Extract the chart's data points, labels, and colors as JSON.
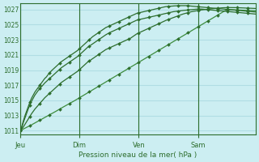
{
  "bg_color": "#cceef2",
  "grid_color": "#b0dde4",
  "line_color_dark": "#2d6e2d",
  "line_color_light": "#3d8c3d",
  "xlabel": "Pression niveau de la mer( hPa )",
  "ylim": [
    1010.5,
    1027.8
  ],
  "yticks": [
    1011,
    1013,
    1015,
    1017,
    1019,
    1021,
    1023,
    1025,
    1027
  ],
  "xtick_labels": [
    "Jeu",
    "Dim",
    "Ven",
    "Sam"
  ],
  "xtick_positions": [
    0,
    36,
    72,
    108
  ],
  "total_points": 144,
  "line_fast1": [
    1011.0,
    1011.5,
    1012.3,
    1013.0,
    1013.6,
    1014.2,
    1014.8,
    1015.3,
    1015.7,
    1016.1,
    1016.4,
    1016.7,
    1017.0,
    1017.3,
    1017.6,
    1017.9,
    1018.1,
    1018.4,
    1018.6,
    1018.9,
    1019.1,
    1019.3,
    1019.5,
    1019.7,
    1019.9,
    1020.1,
    1020.25,
    1020.4,
    1020.55,
    1020.7,
    1020.85,
    1021.0,
    1021.15,
    1021.3,
    1021.45,
    1021.6,
    1021.8,
    1022.0,
    1022.2,
    1022.4,
    1022.6,
    1022.8,
    1023.0,
    1023.2,
    1023.4,
    1023.55,
    1023.7,
    1023.85,
    1024.0,
    1024.15,
    1024.3,
    1024.45,
    1024.6,
    1024.7,
    1024.8,
    1024.9,
    1025.0,
    1025.1,
    1025.2,
    1025.3,
    1025.4,
    1025.5,
    1025.6,
    1025.7,
    1025.8,
    1025.9,
    1026.0,
    1026.1,
    1026.2,
    1026.3,
    1026.4,
    1026.5,
    1026.55,
    1026.6,
    1026.65,
    1026.7,
    1026.75,
    1026.8,
    1026.85,
    1026.9,
    1026.95,
    1027.0,
    1027.05,
    1027.1,
    1027.15,
    1027.2,
    1027.25,
    1027.3,
    1027.35,
    1027.38,
    1027.4,
    1027.42,
    1027.44,
    1027.46,
    1027.47,
    1027.48,
    1027.49,
    1027.5,
    1027.5,
    1027.5,
    1027.5,
    1027.5,
    1027.48,
    1027.46,
    1027.44,
    1027.42,
    1027.4,
    1027.38,
    1027.36,
    1027.34,
    1027.32,
    1027.3,
    1027.28,
    1027.26,
    1027.24,
    1027.22,
    1027.2,
    1027.18,
    1027.16,
    1027.14,
    1027.12,
    1027.1,
    1027.08,
    1027.06,
    1027.04,
    1027.02,
    1027.0,
    1026.98,
    1026.96,
    1026.94,
    1026.92,
    1026.9,
    1026.88,
    1026.86,
    1026.84,
    1026.82,
    1026.8,
    1026.78,
    1026.76,
    1026.74,
    1026.72,
    1026.7,
    1026.68,
    1026.66
  ],
  "line_fast2": [
    1011.0,
    1011.4,
    1012.1,
    1012.7,
    1013.3,
    1013.9,
    1014.4,
    1014.9,
    1015.3,
    1015.7,
    1016.0,
    1016.3,
    1016.55,
    1016.8,
    1017.05,
    1017.3,
    1017.5,
    1017.7,
    1017.9,
    1018.1,
    1018.3,
    1018.5,
    1018.7,
    1018.9,
    1019.1,
    1019.3,
    1019.45,
    1019.6,
    1019.75,
    1019.9,
    1020.05,
    1020.2,
    1020.35,
    1020.5,
    1020.65,
    1020.8,
    1021.0,
    1021.2,
    1021.4,
    1021.6,
    1021.8,
    1022.0,
    1022.15,
    1022.3,
    1022.45,
    1022.6,
    1022.75,
    1022.9,
    1023.05,
    1023.2,
    1023.35,
    1023.5,
    1023.65,
    1023.78,
    1023.9,
    1024.0,
    1024.1,
    1024.2,
    1024.3,
    1024.4,
    1024.5,
    1024.6,
    1024.7,
    1024.8,
    1024.9,
    1025.0,
    1025.1,
    1025.2,
    1025.3,
    1025.4,
    1025.5,
    1025.6,
    1025.65,
    1025.7,
    1025.75,
    1025.8,
    1025.85,
    1025.9,
    1025.95,
    1026.0,
    1026.05,
    1026.1,
    1026.15,
    1026.2,
    1026.25,
    1026.3,
    1026.35,
    1026.4,
    1026.45,
    1026.5,
    1026.55,
    1026.6,
    1026.65,
    1026.7,
    1026.73,
    1026.76,
    1026.79,
    1026.82,
    1026.85,
    1026.87,
    1026.89,
    1026.91,
    1026.93,
    1026.95,
    1026.97,
    1026.99,
    1027.01,
    1027.03,
    1027.05,
    1027.05,
    1027.05,
    1027.03,
    1027.01,
    1026.99,
    1026.97,
    1026.95,
    1026.93,
    1026.91,
    1026.89,
    1026.87,
    1026.85,
    1026.83,
    1026.81,
    1026.79,
    1026.77,
    1026.75,
    1026.73,
    1026.71,
    1026.69,
    1026.67,
    1026.65,
    1026.63,
    1026.61,
    1026.59,
    1026.57,
    1026.55,
    1026.53,
    1026.51,
    1026.49,
    1026.47,
    1026.45,
    1026.43,
    1026.41,
    1026.39
  ],
  "line_slow1": [
    1011.0,
    1011.2,
    1011.5,
    1011.85,
    1012.2,
    1012.55,
    1012.9,
    1013.25,
    1013.55,
    1013.85,
    1014.1,
    1014.35,
    1014.6,
    1014.85,
    1015.1,
    1015.35,
    1015.55,
    1015.75,
    1015.95,
    1016.15,
    1016.35,
    1016.55,
    1016.75,
    1016.95,
    1017.15,
    1017.35,
    1017.5,
    1017.65,
    1017.8,
    1017.95,
    1018.1,
    1018.25,
    1018.4,
    1018.55,
    1018.7,
    1018.85,
    1019.05,
    1019.25,
    1019.45,
    1019.65,
    1019.85,
    1020.05,
    1020.2,
    1020.35,
    1020.5,
    1020.65,
    1020.8,
    1020.95,
    1021.1,
    1021.25,
    1021.4,
    1021.55,
    1021.7,
    1021.8,
    1021.9,
    1022.0,
    1022.1,
    1022.2,
    1022.3,
    1022.4,
    1022.5,
    1022.6,
    1022.7,
    1022.8,
    1022.9,
    1023.0,
    1023.1,
    1023.2,
    1023.35,
    1023.5,
    1023.65,
    1023.8,
    1023.9,
    1024.0,
    1024.1,
    1024.2,
    1024.3,
    1024.4,
    1024.5,
    1024.6,
    1024.7,
    1024.8,
    1024.9,
    1025.0,
    1025.1,
    1025.2,
    1025.3,
    1025.4,
    1025.5,
    1025.6,
    1025.68,
    1025.76,
    1025.84,
    1025.92,
    1026.0,
    1026.08,
    1026.16,
    1026.24,
    1026.32,
    1026.4,
    1026.46,
    1026.52,
    1026.58,
    1026.64,
    1026.7,
    1026.74,
    1026.78,
    1026.82,
    1026.86,
    1026.9,
    1026.93,
    1026.96,
    1026.99,
    1027.02,
    1027.05,
    1027.07,
    1027.09,
    1027.11,
    1027.13,
    1027.15,
    1027.17,
    1027.19,
    1027.21,
    1027.22,
    1027.23,
    1027.24,
    1027.25,
    1027.25,
    1027.25,
    1027.25,
    1027.25,
    1027.24,
    1027.23,
    1027.22,
    1027.21,
    1027.2,
    1027.2,
    1027.19,
    1027.18,
    1027.17,
    1027.16,
    1027.15,
    1027.14,
    1027.13
  ],
  "line_linear": [
    1011.0,
    1011.11,
    1011.22,
    1011.33,
    1011.44,
    1011.55,
    1011.67,
    1011.78,
    1011.9,
    1012.02,
    1012.14,
    1012.26,
    1012.38,
    1012.5,
    1012.62,
    1012.74,
    1012.86,
    1012.98,
    1013.1,
    1013.22,
    1013.34,
    1013.46,
    1013.59,
    1013.72,
    1013.85,
    1013.98,
    1014.1,
    1014.22,
    1014.34,
    1014.46,
    1014.58,
    1014.7,
    1014.82,
    1014.95,
    1015.08,
    1015.21,
    1015.34,
    1015.47,
    1015.6,
    1015.73,
    1015.86,
    1015.99,
    1016.12,
    1016.25,
    1016.38,
    1016.51,
    1016.64,
    1016.77,
    1016.9,
    1017.03,
    1017.16,
    1017.29,
    1017.42,
    1017.55,
    1017.68,
    1017.81,
    1017.94,
    1018.07,
    1018.2,
    1018.33,
    1018.46,
    1018.59,
    1018.72,
    1018.85,
    1018.98,
    1019.11,
    1019.24,
    1019.37,
    1019.5,
    1019.63,
    1019.76,
    1019.89,
    1020.02,
    1020.15,
    1020.28,
    1020.41,
    1020.54,
    1020.67,
    1020.8,
    1020.93,
    1021.06,
    1021.19,
    1021.32,
    1021.45,
    1021.58,
    1021.71,
    1021.84,
    1021.97,
    1022.1,
    1022.23,
    1022.36,
    1022.49,
    1022.62,
    1022.75,
    1022.88,
    1023.01,
    1023.14,
    1023.27,
    1023.4,
    1023.53,
    1023.66,
    1023.79,
    1023.92,
    1024.05,
    1024.18,
    1024.31,
    1024.44,
    1024.57,
    1024.7,
    1024.83,
    1024.96,
    1025.09,
    1025.22,
    1025.35,
    1025.48,
    1025.61,
    1025.74,
    1025.87,
    1026.0,
    1026.13,
    1026.26,
    1026.39,
    1026.52,
    1026.65,
    1026.78,
    1026.91,
    1026.98,
    1026.98,
    1026.97,
    1026.96,
    1026.95,
    1026.94,
    1026.93,
    1026.92,
    1026.91,
    1026.9,
    1026.89,
    1026.88,
    1026.87,
    1026.86,
    1026.85,
    1026.84,
    1026.83,
    1026.82
  ]
}
